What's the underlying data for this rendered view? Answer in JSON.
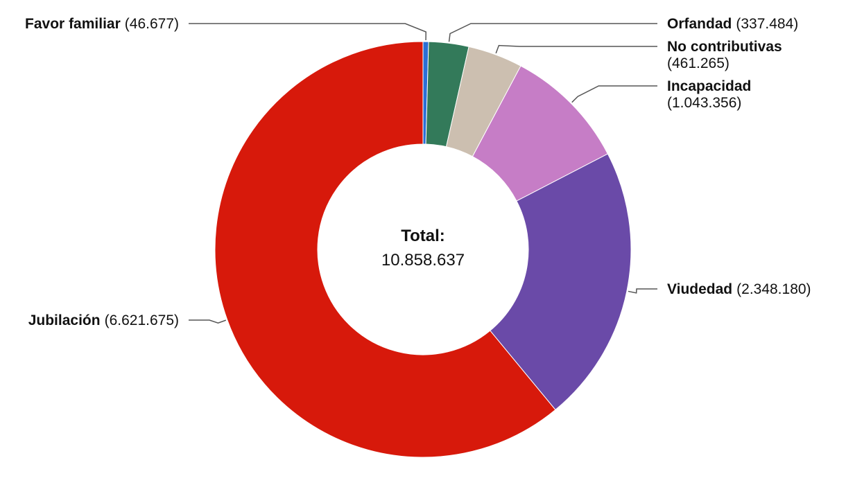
{
  "chart_data": {
    "type": "pie",
    "variant": "donut",
    "center": {
      "title": "Total:",
      "value": "10.858.637"
    },
    "slices": [
      {
        "name": "Favor familiar",
        "value": 46677,
        "value_label": "(46.677)",
        "color": "#2a6fd6"
      },
      {
        "name": "Orfandad",
        "value": 337484,
        "value_label": "(337.484)",
        "color": "#337a5a"
      },
      {
        "name": "No contributivas",
        "value": 461265,
        "value_label": "(461.265)",
        "color": "#ccbfb0"
      },
      {
        "name": "Incapacidad",
        "value": 1043356,
        "value_label": "(1.043.356)",
        "color": "#c67dc6"
      },
      {
        "name": "Viudedad",
        "value": 2348180,
        "value_label": "(2.348.180)",
        "color": "#6a4aa8"
      },
      {
        "name": "Jubilación",
        "value": 6621675,
        "value_label": "(6.621.675)",
        "color": "#d7190b"
      }
    ]
  }
}
